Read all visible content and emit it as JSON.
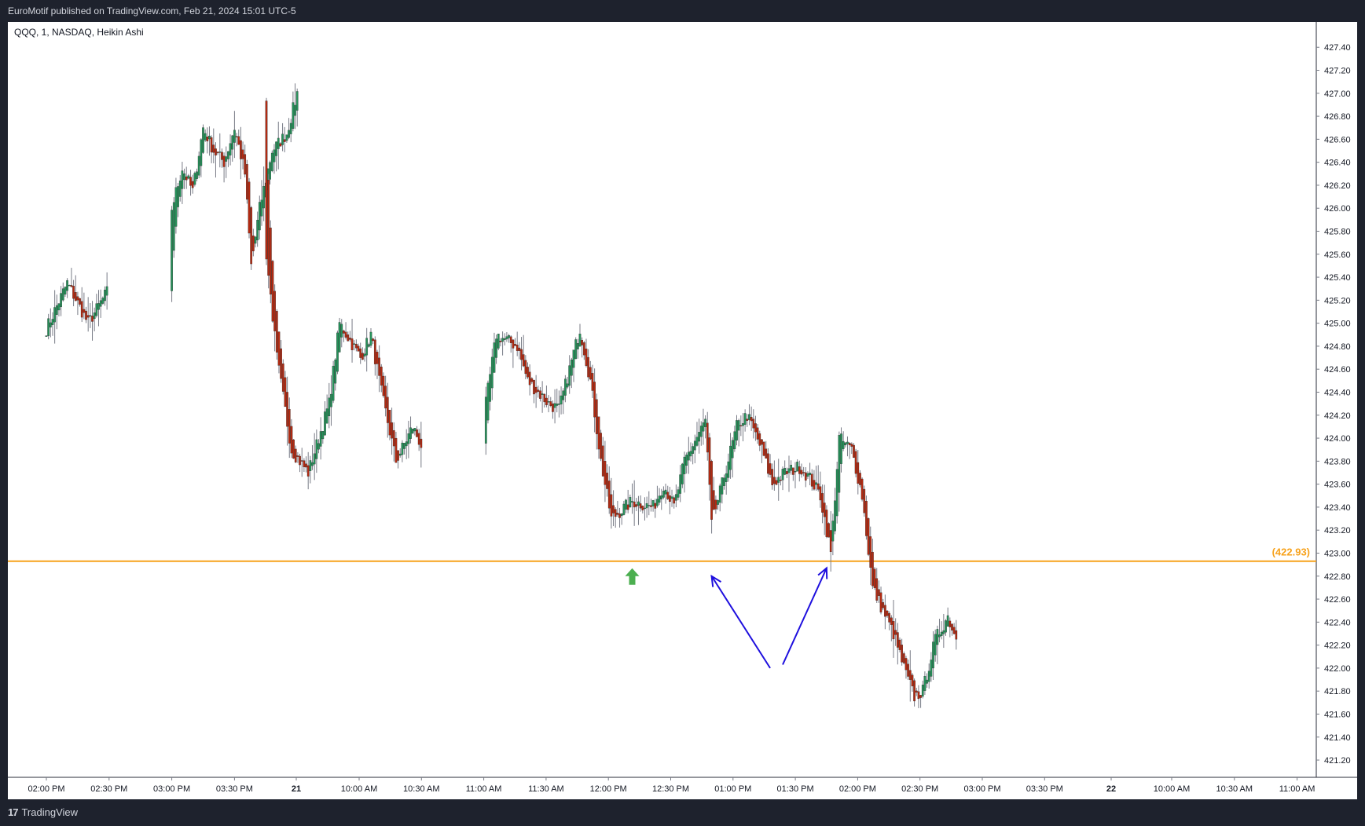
{
  "header": {
    "published_text": "EuroMotif published on TradingView.com, Feb 21, 2024 15:01 UTC-5"
  },
  "chart": {
    "symbol_line": "QQQ, 1, NASDAQ, Heikin Ashi"
  },
  "footer": {
    "logo_mark": "17",
    "brand": "TradingView"
  },
  "colors": {
    "up": "#26915a",
    "down": "#b22a12",
    "wick": "#787b86",
    "level_line": "#f7a21b",
    "arrow_blue": "#1e0fde",
    "green_arrow": "#4caf50",
    "axis_text": "#131722"
  },
  "chart_data": {
    "type": "candlestick",
    "style": "Heikin Ashi",
    "symbol": "QQQ",
    "interval": "1",
    "exchange": "NASDAQ",
    "ylim": [
      421.05,
      427.62
    ],
    "y_ticks": [
      "421.20",
      "421.40",
      "421.60",
      "421.80",
      "422.00",
      "422.20",
      "422.40",
      "422.60",
      "422.80",
      "423.00",
      "423.20",
      "423.40",
      "423.60",
      "423.80",
      "424.00",
      "424.20",
      "424.40",
      "424.60",
      "424.80",
      "425.00",
      "425.20",
      "425.40",
      "425.60",
      "425.80",
      "426.00",
      "426.20",
      "426.40",
      "426.60",
      "426.80",
      "427.00",
      "427.20",
      "427.40"
    ],
    "x_ticks": [
      "02:00 PM",
      "02:30 PM",
      "03:00 PM",
      "03:30 PM",
      "21",
      "10:00 AM",
      "10:30 AM",
      "11:00 AM",
      "11:30 AM",
      "12:00 PM",
      "12:30 PM",
      "01:00 PM",
      "01:30 PM",
      "02:00 PM",
      "02:30 PM",
      "03:00 PM",
      "03:30 PM",
      "22",
      "10:00 AM",
      "10:30 AM",
      "11:00 AM"
    ],
    "horizontal_level": {
      "value": 422.93,
      "label": "(422.93)"
    },
    "price_path_keypoints": [
      [
        "02-20 13:42",
        424.75
      ],
      [
        "02-20 14:00",
        424.95
      ],
      [
        "02-20 14:10",
        425.35
      ],
      [
        "02-20 14:20",
        425.0
      ],
      [
        "02-20 14:30",
        425.3
      ],
      [
        "02-20 14:45",
        425.55
      ],
      [
        "02-20 15:00",
        426.0
      ],
      [
        "02-20 15:05",
        426.35
      ],
      [
        "02-20 15:10",
        426.15
      ],
      [
        "02-20 15:15",
        426.7
      ],
      [
        "02-20 15:20",
        426.5
      ],
      [
        "02-20 15:25",
        426.4
      ],
      [
        "02-20 15:30",
        426.7
      ],
      [
        "02-20 15:35",
        426.3
      ],
      [
        "02-20 15:38",
        425.5
      ],
      [
        "02-20 15:42",
        426.0
      ],
      [
        "02-20 15:48",
        426.5
      ],
      [
        "02-20 15:55",
        426.65
      ],
      [
        "02-20 16:00",
        427.0
      ],
      [
        "02-21 09:30",
        425.6
      ],
      [
        "02-21 09:35",
        424.7
      ],
      [
        "02-21 09:42",
        423.9
      ],
      [
        "02-21 09:50",
        423.7
      ],
      [
        "02-21 10:00",
        424.3
      ],
      [
        "02-21 10:05",
        425.0
      ],
      [
        "02-21 10:15",
        424.7
      ],
      [
        "02-21 10:20",
        424.9
      ],
      [
        "02-21 10:25",
        424.4
      ],
      [
        "02-21 10:32",
        423.8
      ],
      [
        "02-21 10:40",
        424.1
      ],
      [
        "02-21 10:45",
        423.9
      ],
      [
        "02-21 11:00",
        424.1
      ],
      [
        "02-21 11:15",
        424.3
      ],
      [
        "02-21 11:20",
        424.9
      ],
      [
        "02-21 11:30",
        424.8
      ],
      [
        "02-21 11:35",
        424.5
      ],
      [
        "02-21 11:45",
        424.3
      ],
      [
        "02-21 11:50",
        424.25
      ],
      [
        "02-21 11:55",
        424.6
      ],
      [
        "02-21 12:00",
        424.95
      ],
      [
        "02-21 12:05",
        424.5
      ],
      [
        "02-21 12:10",
        423.8
      ],
      [
        "02-21 12:15",
        423.3
      ],
      [
        "02-21 12:25",
        423.45
      ],
      [
        "02-21 12:35",
        423.4
      ],
      [
        "02-21 12:40",
        423.6
      ],
      [
        "02-21 12:45",
        423.4
      ],
      [
        "02-21 12:50",
        423.8
      ],
      [
        "02-21 13:00",
        424.15
      ],
      [
        "02-21 13:03",
        423.25
      ],
      [
        "02-21 13:08",
        423.6
      ],
      [
        "02-21 13:15",
        424.1
      ],
      [
        "02-21 13:20",
        424.2
      ],
      [
        "02-21 13:27",
        423.9
      ],
      [
        "02-21 13:32",
        423.6
      ],
      [
        "02-21 13:38",
        423.7
      ],
      [
        "02-21 13:45",
        423.75
      ],
      [
        "02-21 13:50",
        423.65
      ],
      [
        "02-21 13:55",
        423.5
      ],
      [
        "02-21 14:00",
        423.0
      ],
      [
        "02-21 14:04",
        424.0
      ],
      [
        "02-21 14:10",
        423.9
      ],
      [
        "02-21 14:15",
        423.5
      ],
      [
        "02-21 14:20",
        422.7
      ],
      [
        "02-21 14:25",
        422.5
      ],
      [
        "02-21 14:30",
        422.3
      ],
      [
        "02-21 14:35",
        422.0
      ],
      [
        "02-21 14:40",
        421.75
      ],
      [
        "02-21 14:44",
        421.8
      ],
      [
        "02-21 14:50",
        422.25
      ],
      [
        "02-21 14:56",
        422.45
      ],
      [
        "02-21 15:00",
        422.25
      ]
    ],
    "annotations": [
      {
        "type": "up-arrow",
        "color": "green",
        "at": "02-21 12:25",
        "price": 422.8
      },
      {
        "type": "arrow",
        "color": "blue",
        "from": [
          "02-21 13:31",
          422.0
        ],
        "to": [
          "02-21 13:03",
          422.8
        ]
      },
      {
        "type": "arrow",
        "color": "blue",
        "from": [
          "02-21 13:37",
          422.03
        ],
        "to": [
          "02-21 13:58",
          422.87
        ]
      }
    ]
  }
}
